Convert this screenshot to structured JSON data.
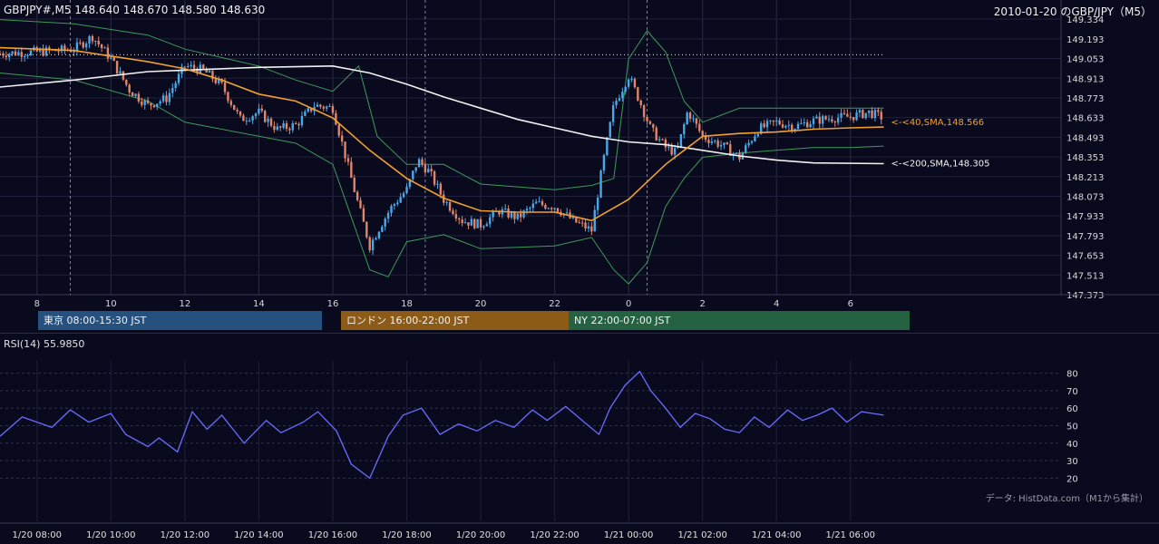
{
  "header": {
    "left": "GBPJPY#,M5 148.640 148.670 148.580 148.630",
    "right": "2010-01-20 のGBP/JPY（M5）"
  },
  "sessions": {
    "tokyo": "東京 08:00-15:30 JST",
    "london": "ロンドン 16:00-22:00 JST",
    "ny": "NY 22:00-07:00 JST"
  },
  "rsi_label": "RSI(14) 55.9850",
  "credit": "データ: HistData.com（M1から集計）",
  "colors": {
    "background": "#0a0a1f",
    "up_candle": "#4aa8e8",
    "down_candle": "#e0866a",
    "sma40": "#f0a030",
    "sma200": "#f2f2f2",
    "bollinger": "#3f9a5a",
    "rsi": "#6b6bff",
    "tokyo": "#26507e",
    "london": "#8c5b18",
    "ny": "#256242"
  },
  "chart_data": [
    {
      "type": "candlestick",
      "title": "GBPJPY#,M5",
      "x_tick_labels": [
        "8",
        "10",
        "12",
        "14",
        "16",
        "18",
        "20",
        "22",
        "0",
        "2",
        "4",
        "6"
      ],
      "x_tick_hours": [
        8,
        10,
        12,
        14,
        16,
        18,
        20,
        22,
        24,
        26,
        28,
        30
      ],
      "x_range_hours": [
        7.0,
        31.6
      ],
      "y_range": [
        147.373,
        149.334
      ],
      "y_ticks": [
        "149.334",
        "149.193",
        "149.053",
        "148.913",
        "148.773",
        "148.633",
        "148.493",
        "148.353",
        "148.213",
        "148.073",
        "147.933",
        "147.793",
        "147.653",
        "147.513",
        "147.373"
      ],
      "dashed_vlines_hours": [
        8.9,
        18.5,
        24.5
      ],
      "dotted_hline": {
        "from_hour": 7.0,
        "to_hour": 30.9,
        "value": 149.08
      },
      "close_path_hours": [
        7,
        8,
        9,
        9.5,
        10,
        10.5,
        11,
        11.5,
        12,
        12.5,
        13,
        13.5,
        14,
        14.5,
        15,
        15.5,
        16,
        16.3,
        16.6,
        17,
        17.3,
        17.6,
        18,
        18.3,
        18.6,
        19,
        19.5,
        20,
        20.5,
        21,
        21.5,
        22,
        22.5,
        23,
        23.3,
        23.6,
        24,
        24.3,
        24.6,
        25,
        25.3,
        25.6,
        26,
        26.5,
        27,
        27.5,
        28,
        28.5,
        29,
        29.5,
        30,
        30.5,
        30.9
      ],
      "close_path_values": [
        149.09,
        149.1,
        149.12,
        149.21,
        149.05,
        148.83,
        148.72,
        148.77,
        149.0,
        148.97,
        148.86,
        148.62,
        148.67,
        148.55,
        148.58,
        148.72,
        148.7,
        148.4,
        148.1,
        147.72,
        147.87,
        148.0,
        148.12,
        148.33,
        148.25,
        148.05,
        147.9,
        147.87,
        147.97,
        147.92,
        148.02,
        148.0,
        147.9,
        147.83,
        148.3,
        148.72,
        148.93,
        148.75,
        148.55,
        148.42,
        148.38,
        148.68,
        148.5,
        148.44,
        148.35,
        148.55,
        148.6,
        148.57,
        148.61,
        148.63,
        148.64,
        148.67,
        148.63
      ],
      "series": [
        {
          "name": "<-<40,SMA,148.566",
          "points": [
            [
              7,
              149.13
            ],
            [
              9,
              149.11
            ],
            [
              11,
              149.03
            ],
            [
              12,
              148.98
            ],
            [
              13,
              148.9
            ],
            [
              14,
              148.8
            ],
            [
              15,
              148.75
            ],
            [
              16,
              148.63
            ],
            [
              17,
              148.4
            ],
            [
              18,
              148.2
            ],
            [
              19,
              148.06
            ],
            [
              20,
              147.97
            ],
            [
              21,
              147.96
            ],
            [
              22,
              147.96
            ],
            [
              23,
              147.9
            ],
            [
              24,
              148.05
            ],
            [
              25,
              148.3
            ],
            [
              26,
              148.5
            ],
            [
              27,
              148.52
            ],
            [
              28,
              148.53
            ],
            [
              29,
              148.55
            ],
            [
              30,
              148.56
            ],
            [
              30.9,
              148.566
            ]
          ]
        },
        {
          "name": "<-<200,SMA,148.305",
          "points": [
            [
              7,
              148.85
            ],
            [
              9,
              148.9
            ],
            [
              11,
              148.96
            ],
            [
              12,
              148.97
            ],
            [
              14,
              148.99
            ],
            [
              16,
              149.0
            ],
            [
              17,
              148.95
            ],
            [
              18,
              148.87
            ],
            [
              19,
              148.78
            ],
            [
              20,
              148.7
            ],
            [
              21,
              148.62
            ],
            [
              22,
              148.56
            ],
            [
              23,
              148.5
            ],
            [
              24,
              148.46
            ],
            [
              25,
              148.44
            ],
            [
              26,
              148.4
            ],
            [
              27,
              148.36
            ],
            [
              28,
              148.33
            ],
            [
              29,
              148.31
            ],
            [
              30.9,
              148.305
            ]
          ]
        }
      ],
      "bollinger": {
        "upper": [
          [
            7,
            149.33
          ],
          [
            9,
            149.3
          ],
          [
            11,
            149.22
          ],
          [
            12,
            149.12
          ],
          [
            14,
            149.0
          ],
          [
            15,
            148.9
          ],
          [
            16,
            148.82
          ],
          [
            16.7,
            149.0
          ],
          [
            17.2,
            148.5
          ],
          [
            18,
            148.3
          ],
          [
            19,
            148.3
          ],
          [
            20,
            148.16
          ],
          [
            22,
            148.12
          ],
          [
            23,
            148.15
          ],
          [
            23.6,
            148.2
          ],
          [
            24,
            149.05
          ],
          [
            24.5,
            149.25
          ],
          [
            25,
            149.1
          ],
          [
            25.5,
            148.75
          ],
          [
            26,
            148.6
          ],
          [
            27,
            148.7
          ],
          [
            28,
            148.7
          ],
          [
            29,
            148.7
          ],
          [
            30,
            148.7
          ],
          [
            30.9,
            148.7
          ]
        ],
        "lower": [
          [
            7,
            148.95
          ],
          [
            9,
            148.9
          ],
          [
            11,
            148.75
          ],
          [
            12,
            148.6
          ],
          [
            14,
            148.5
          ],
          [
            15,
            148.45
          ],
          [
            16,
            148.3
          ],
          [
            17,
            147.55
          ],
          [
            17.5,
            147.5
          ],
          [
            18,
            147.75
          ],
          [
            19,
            147.8
          ],
          [
            20,
            147.7
          ],
          [
            22,
            147.72
          ],
          [
            23,
            147.78
          ],
          [
            23.6,
            147.55
          ],
          [
            24,
            147.45
          ],
          [
            24.5,
            147.6
          ],
          [
            25,
            148.0
          ],
          [
            25.5,
            148.2
          ],
          [
            26,
            148.35
          ],
          [
            27,
            148.38
          ],
          [
            28,
            148.4
          ],
          [
            29,
            148.42
          ],
          [
            30,
            148.42
          ],
          [
            30.9,
            148.43
          ]
        ]
      }
    },
    {
      "type": "line",
      "title": "RSI(14) 55.9850",
      "y_range": [
        15,
        85
      ],
      "y_ticks": [
        80,
        70,
        60,
        50,
        40,
        30,
        20
      ],
      "x_tick_labels": [
        "1/20 08:00",
        "1/20 10:00",
        "1/20 12:00",
        "1/20 14:00",
        "1/20 16:00",
        "1/20 18:00",
        "1/20 20:00",
        "1/20 22:00",
        "1/21 00:00",
        "1/21 02:00",
        "1/21 04:00",
        "1/21 06:00"
      ],
      "x_tick_hours": [
        8,
        10,
        12,
        14,
        16,
        18,
        20,
        22,
        24,
        26,
        28,
        30
      ],
      "series": [
        {
          "name": "RSI(14)",
          "points": [
            [
              7,
              44
            ],
            [
              7.6,
              55
            ],
            [
              8.4,
              49
            ],
            [
              8.9,
              59
            ],
            [
              9.4,
              52
            ],
            [
              10,
              57
            ],
            [
              10.4,
              45
            ],
            [
              11,
              38
            ],
            [
              11.3,
              43
            ],
            [
              11.8,
              35
            ],
            [
              12.2,
              58
            ],
            [
              12.6,
              48
            ],
            [
              13.0,
              56
            ],
            [
              13.6,
              40
            ],
            [
              14.2,
              53
            ],
            [
              14.6,
              46
            ],
            [
              15.2,
              52
            ],
            [
              15.6,
              58
            ],
            [
              16.1,
              47
            ],
            [
              16.5,
              28
            ],
            [
              17.0,
              20
            ],
            [
              17.5,
              44
            ],
            [
              17.9,
              56
            ],
            [
              18.4,
              60
            ],
            [
              18.9,
              45
            ],
            [
              19.4,
              51
            ],
            [
              19.9,
              47
            ],
            [
              20.4,
              53
            ],
            [
              20.9,
              49
            ],
            [
              21.4,
              59
            ],
            [
              21.8,
              53
            ],
            [
              22.3,
              61
            ],
            [
              22.8,
              52
            ],
            [
              23.2,
              45
            ],
            [
              23.5,
              60
            ],
            [
              23.9,
              73
            ],
            [
              24.3,
              81
            ],
            [
              24.6,
              70
            ],
            [
              25.0,
              60
            ],
            [
              25.4,
              49
            ],
            [
              25.8,
              57
            ],
            [
              26.2,
              54
            ],
            [
              26.6,
              48
            ],
            [
              27.0,
              46
            ],
            [
              27.4,
              55
            ],
            [
              27.8,
              49
            ],
            [
              28.3,
              59
            ],
            [
              28.7,
              53
            ],
            [
              29.1,
              56
            ],
            [
              29.5,
              60
            ],
            [
              29.9,
              52
            ],
            [
              30.3,
              58
            ],
            [
              30.9,
              56
            ]
          ]
        }
      ]
    }
  ]
}
